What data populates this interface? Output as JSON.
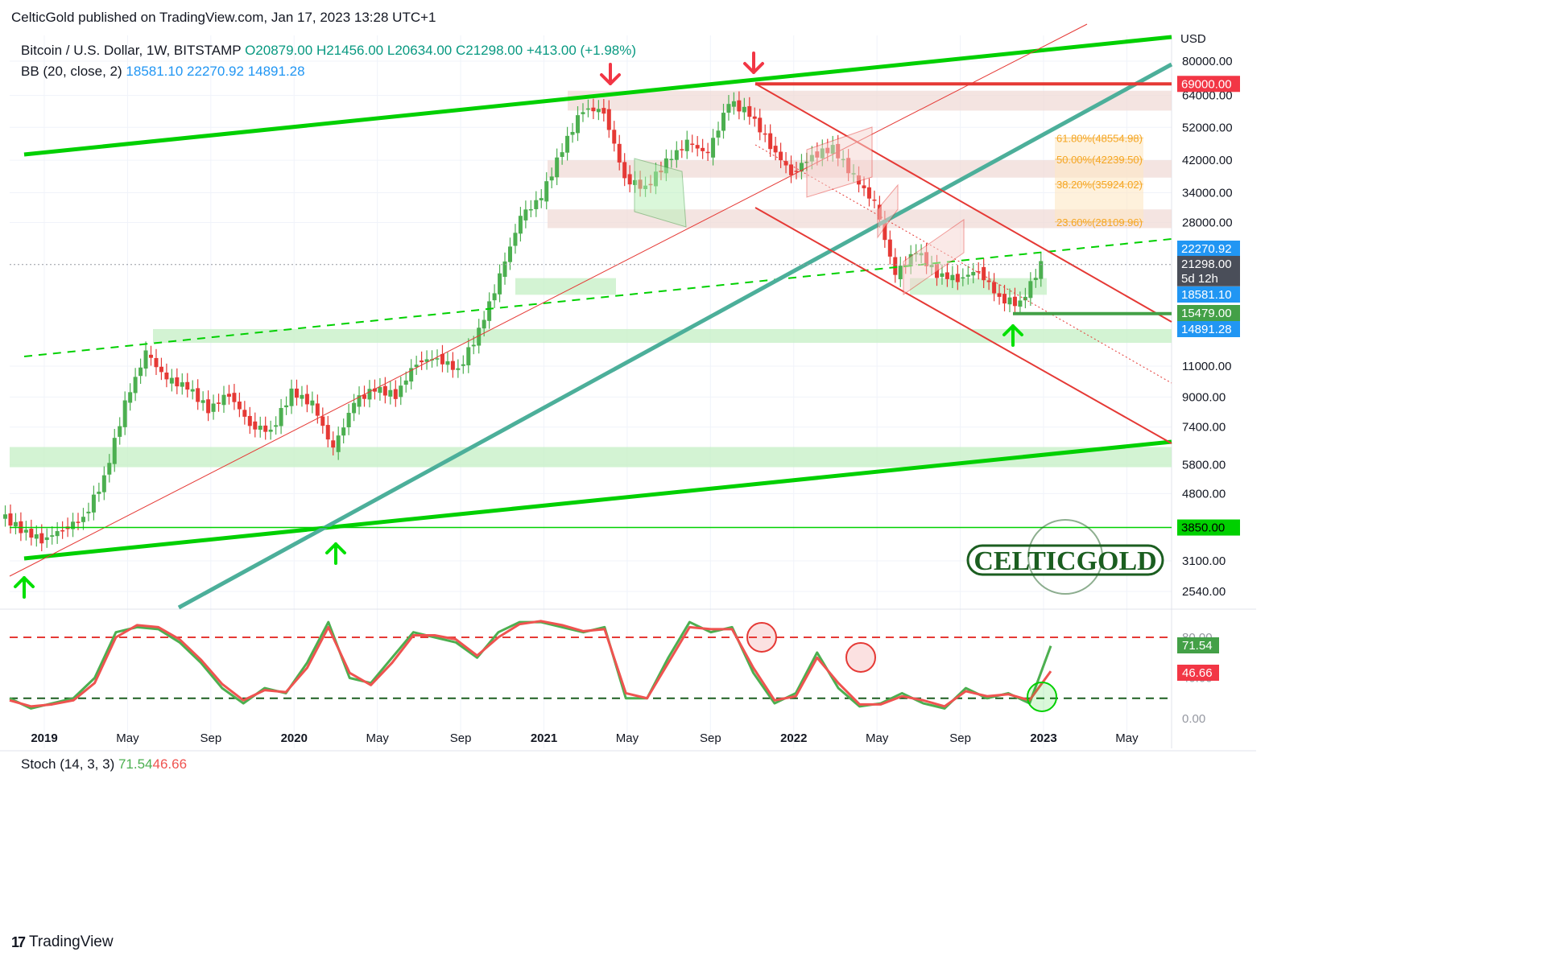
{
  "header": {
    "published": "CelticGold published on TradingView.com, Jan 17, 2023 13:28 UTC+1"
  },
  "legend": {
    "symbol": "Bitcoin / U.S. Dollar, 1W, BITSTAMP",
    "o": "O20879.00",
    "h": "H21456.00",
    "l": "L20634.00",
    "c": "C21298.00",
    "chg": "+413.00 (+1.98%)",
    "bb_name": "BB (20, close, 2)",
    "bb_mid": "18581.10",
    "bb_up": "22270.92",
    "bb_low": "14891.28"
  },
  "stoch_legend": {
    "name": "Stoch (14, 3, 3)",
    "k": "71.54",
    "d": "46.66"
  },
  "watermark": "CELTICGOLD",
  "footer": {
    "brand": "TradingView"
  },
  "colors": {
    "up": "#4caf50",
    "down": "#e53935",
    "green_line": "#00d000",
    "teal_line": "#4caf9a",
    "red_line": "#e53935",
    "stoch_k": "#4caf50",
    "stoch_d": "#ef5350",
    "zone_green": "#c8f0c8",
    "zone_red": "#f0d8d4",
    "fib": "#f5a623"
  },
  "chart_data": [
    {
      "type": "candlestick",
      "title": "Bitcoin / U.S. Dollar, 1W, BITSTAMP",
      "y_scale": "log",
      "ylabel": "USD",
      "price_ticks": [
        "80000.00",
        "64000.00",
        "52000.00",
        "42000.00",
        "34000.00",
        "28000.00",
        "11000.00",
        "9000.00",
        "7400.00",
        "5800.00",
        "4800.00",
        "3100.00",
        "2540.00"
      ],
      "price_tick_values": [
        80000,
        64000,
        52000,
        42000,
        34000,
        28000,
        11000,
        9000,
        7400,
        5800,
        4800,
        3100,
        2540
      ],
      "x_ticks": [
        "2019",
        "May",
        "Sep",
        "2020",
        "May",
        "Sep",
        "2021",
        "May",
        "Sep",
        "2022",
        "May",
        "Sep",
        "2023",
        "May"
      ],
      "x_range": [
        "2018-11",
        "2023-06"
      ],
      "price_labels": [
        {
          "text": "69000.00",
          "value": 69000,
          "kind": "level-red"
        },
        {
          "text": "22270.92",
          "value": 22270.92,
          "kind": "bb-upper"
        },
        {
          "text": "21298.00",
          "value": 21298,
          "kind": "last-price"
        },
        {
          "text": "5d 12h",
          "value": 21298,
          "kind": "countdown"
        },
        {
          "text": "18581.10",
          "value": 18581.1,
          "kind": "bb-middle"
        },
        {
          "text": "15479.00",
          "value": 15479,
          "kind": "level-green"
        },
        {
          "text": "14891.28",
          "value": 14891.28,
          "kind": "bb-lower"
        },
        {
          "text": "3850.00",
          "value": 3850,
          "kind": "level-green-line"
        }
      ],
      "fibonacci": [
        {
          "label": "61.80%(48554.98)",
          "value": 48554.98
        },
        {
          "label": "50.00%(42239.50)",
          "value": 42239.5
        },
        {
          "label": "38.20%(35924.02)",
          "value": 35924.02
        },
        {
          "label": "23.60%(28109.96)",
          "value": 28109.96
        }
      ],
      "candles_close_path": [
        [
          "2018-11",
          4200
        ],
        [
          "2018-12",
          3800
        ],
        [
          "2019-01",
          3550
        ],
        [
          "2019-02",
          3800
        ],
        [
          "2019-03",
          4100
        ],
        [
          "2019-04",
          5300
        ],
        [
          "2019-05",
          8600
        ],
        [
          "2019-06",
          12000
        ],
        [
          "2019-07",
          10100
        ],
        [
          "2019-08",
          9600
        ],
        [
          "2019-09",
          8300
        ],
        [
          "2019-10",
          9200
        ],
        [
          "2019-11",
          7500
        ],
        [
          "2019-12",
          7200
        ],
        [
          "2020-01",
          9300
        ],
        [
          "2020-02",
          8600
        ],
        [
          "2020-03",
          6400
        ],
        [
          "2020-04",
          8700
        ],
        [
          "2020-05",
          9500
        ],
        [
          "2020-06",
          9100
        ],
        [
          "2020-07",
          11300
        ],
        [
          "2020-08",
          11600
        ],
        [
          "2020-09",
          10700
        ],
        [
          "2020-10",
          13800
        ],
        [
          "2020-11",
          19700
        ],
        [
          "2020-12",
          29000
        ],
        [
          "2021-01",
          33100
        ],
        [
          "2021-02",
          45200
        ],
        [
          "2021-03",
          58800
        ],
        [
          "2021-04",
          57700
        ],
        [
          "2021-05",
          37300
        ],
        [
          "2021-06",
          35000
        ],
        [
          "2021-07",
          41500
        ],
        [
          "2021-08",
          47100
        ],
        [
          "2021-09",
          43800
        ],
        [
          "2021-10",
          61300
        ],
        [
          "2021-11",
          57000
        ],
        [
          "2021-12",
          46200
        ],
        [
          "2022-01",
          38500
        ],
        [
          "2022-02",
          43200
        ],
        [
          "2022-03",
          45500
        ],
        [
          "2022-04",
          37700
        ],
        [
          "2022-05",
          31800
        ],
        [
          "2022-06",
          19900
        ],
        [
          "2022-07",
          23300
        ],
        [
          "2022-08",
          20000
        ],
        [
          "2022-09",
          19400
        ],
        [
          "2022-10",
          20500
        ],
        [
          "2022-11",
          17100
        ],
        [
          "2022-12",
          16500
        ],
        [
          "2023-01",
          21298
        ]
      ]
    },
    {
      "type": "line",
      "title": "Stoch (14, 3, 3)",
      "ylim": [
        0,
        100
      ],
      "y_ticks": [
        "80.00",
        "40.00",
        "0.00"
      ],
      "series": [
        {
          "name": "%K",
          "values": [
            20,
            10,
            15,
            20,
            40,
            85,
            90,
            88,
            75,
            55,
            30,
            15,
            30,
            25,
            55,
            95,
            40,
            35,
            60,
            85,
            80,
            75,
            60,
            85,
            95,
            95,
            90,
            85,
            90,
            20,
            20,
            60,
            95,
            85,
            90,
            45,
            15,
            25,
            65,
            30,
            12,
            15,
            25,
            15,
            10,
            30,
            20,
            25,
            15,
            71.54
          ]
        },
        {
          "name": "%D",
          "values": [
            18,
            12,
            14,
            18,
            35,
            80,
            92,
            90,
            78,
            58,
            34,
            18,
            28,
            26,
            50,
            90,
            45,
            33,
            55,
            82,
            82,
            78,
            62,
            80,
            93,
            96,
            92,
            86,
            88,
            25,
            20,
            55,
            90,
            88,
            88,
            50,
            18,
            22,
            60,
            35,
            14,
            14,
            22,
            18,
            12,
            27,
            22,
            24,
            18,
            46.66
          ]
        }
      ]
    }
  ]
}
